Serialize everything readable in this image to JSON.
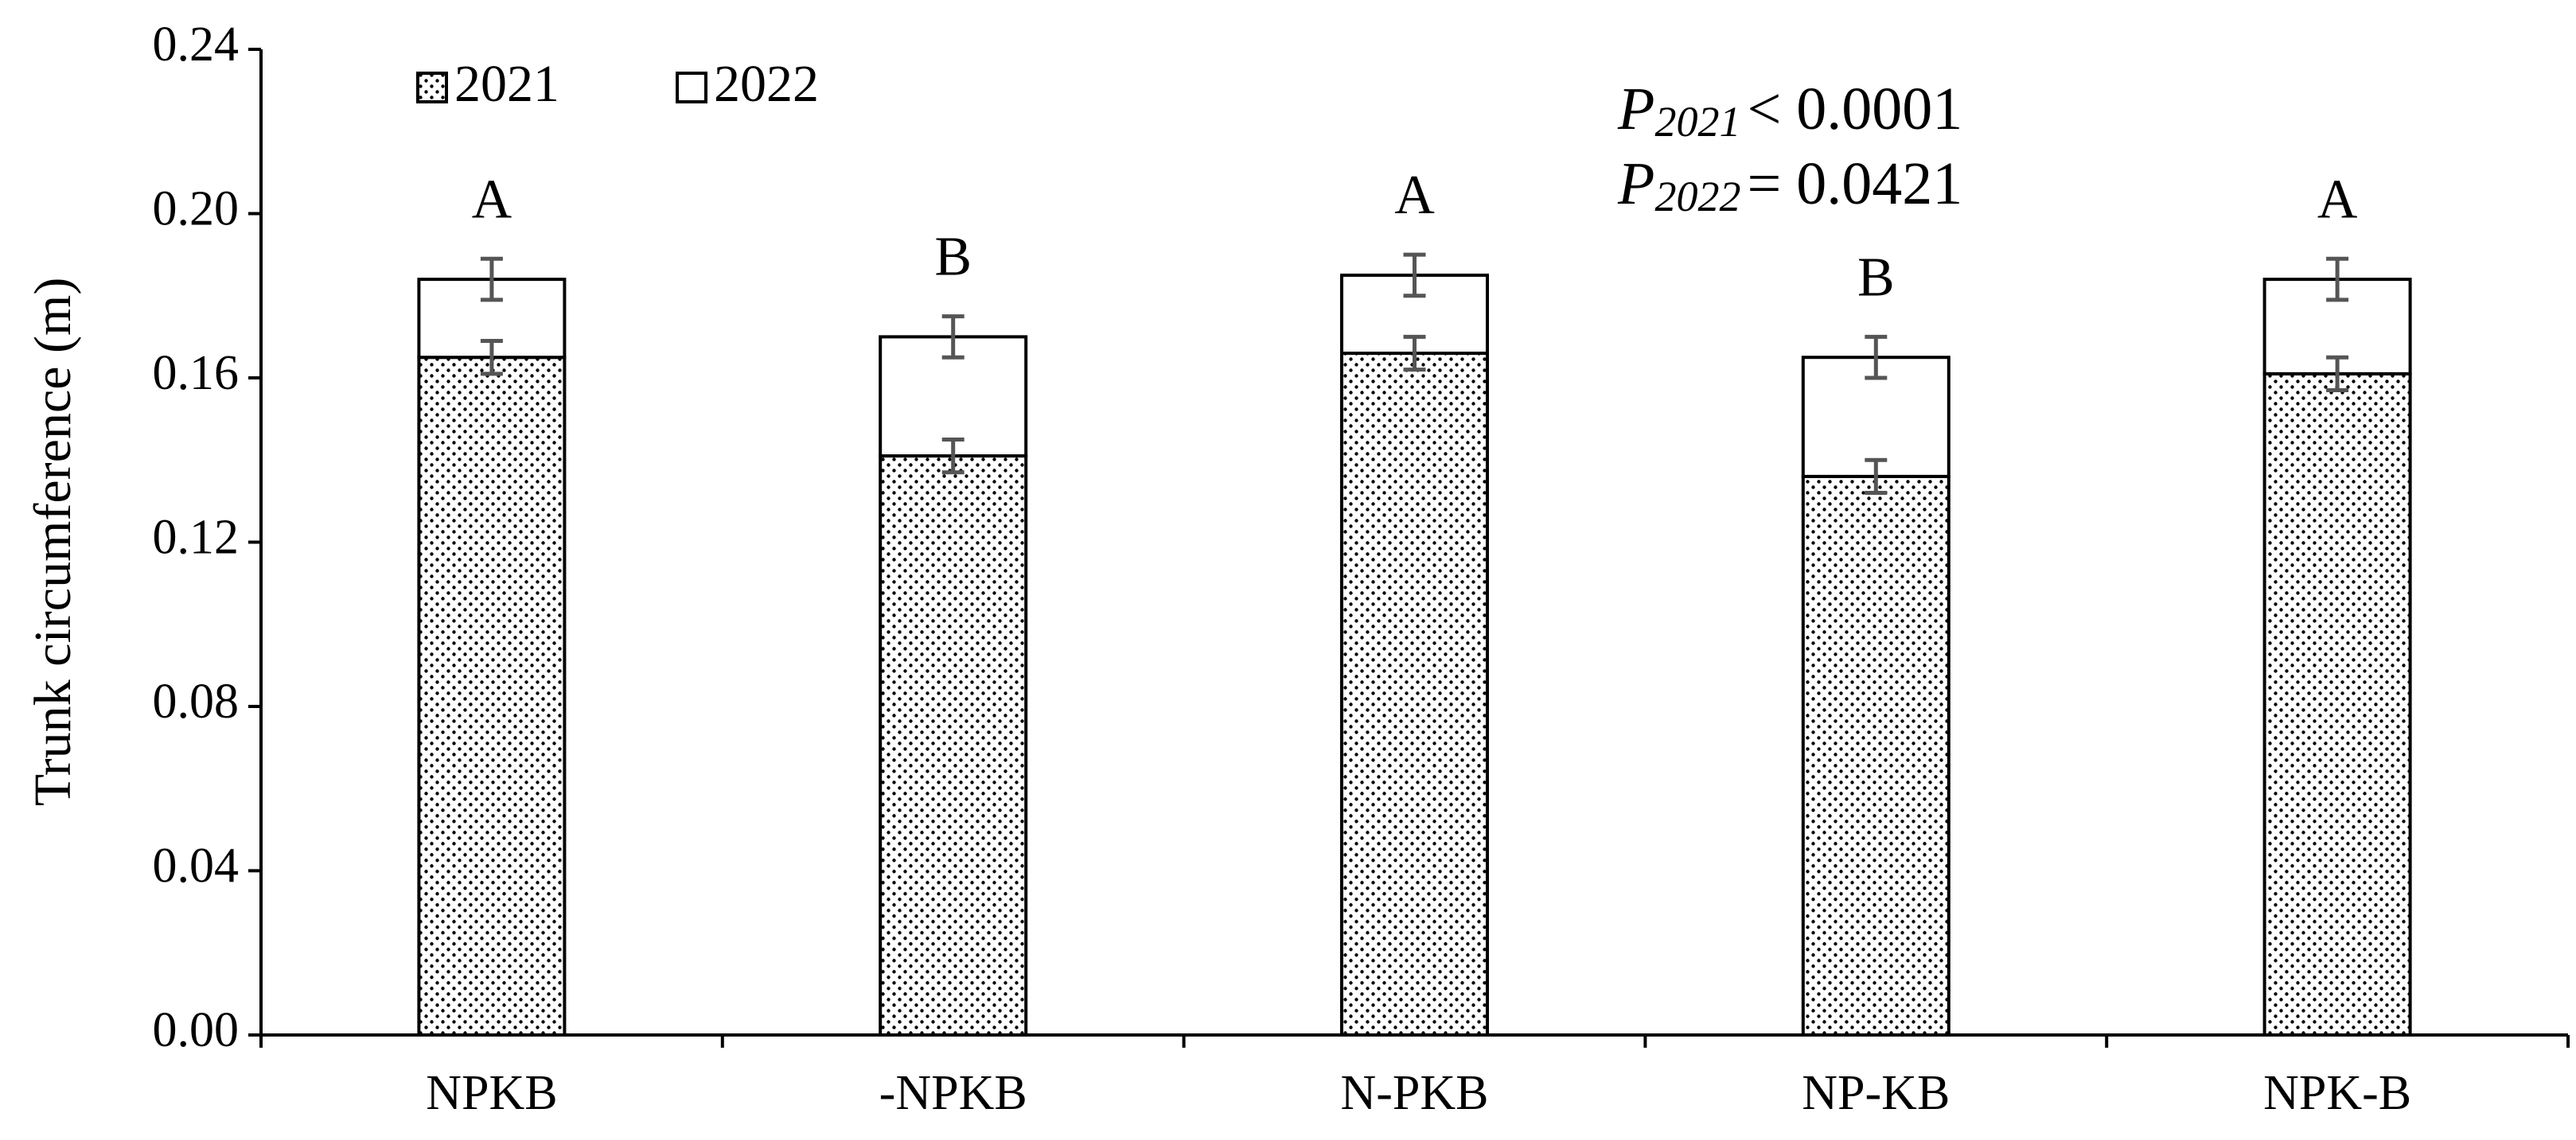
{
  "chart_data": {
    "type": "stacked_bar",
    "y_label": "Trunk circumference (m)",
    "categories": [
      "NPKB",
      "-NPKB",
      "N-PKB",
      "NP-KB",
      "NPK-B"
    ],
    "series": [
      {
        "name": "2021",
        "color": "#ffffff",
        "pattern": "dots",
        "values": [
          0.165,
          0.141,
          0.166,
          0.136,
          0.161
        ],
        "errors": [
          0.004,
          0.004,
          0.004,
          0.004,
          0.004
        ]
      },
      {
        "name": "2022",
        "color": "#ffffff",
        "values": [
          0.019,
          0.029,
          0.019,
          0.029,
          0.023
        ],
        "errors": [
          0.005,
          0.005,
          0.005,
          0.005,
          0.005
        ]
      }
    ],
    "group_letters": [
      "A",
      "B",
      "A",
      "B",
      "A"
    ],
    "p_values": [
      {
        "symbol": "P",
        "subscript": "2021",
        "text": "< 0.0001"
      },
      {
        "symbol": "P",
        "subscript": "2022",
        "text": "= 0.0421"
      }
    ],
    "ylim": [
      0,
      0.24
    ],
    "yticks": [
      {
        "value": 0,
        "label": "0.00"
      },
      0.04,
      0.08,
      0.12,
      0.16,
      {
        "value": 0.2,
        "label": "0.20"
      },
      0.24
    ],
    "grid": false
  }
}
